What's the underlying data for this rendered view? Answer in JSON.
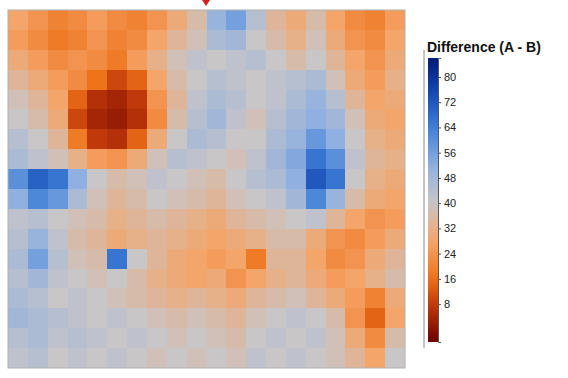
{
  "chart_data": {
    "type": "heatmap",
    "title": "Difference (A - B)",
    "tick_labels": false,
    "colorbar_range": [
      -4,
      86
    ],
    "colorbar_ticks": [
      8,
      16,
      24,
      32,
      40,
      48,
      56,
      64,
      72,
      80
    ],
    "cells": [
      [
        28,
        24,
        20,
        22,
        26,
        22,
        20,
        24,
        30,
        36,
        50,
        56,
        44,
        34,
        30,
        36,
        28,
        22,
        20,
        26
      ],
      [
        26,
        22,
        18,
        20,
        24,
        20,
        22,
        28,
        34,
        38,
        46,
        48,
        40,
        36,
        32,
        38,
        30,
        24,
        22,
        28
      ],
      [
        30,
        26,
        22,
        24,
        22,
        18,
        26,
        32,
        38,
        42,
        40,
        42,
        44,
        40,
        36,
        40,
        34,
        28,
        24,
        30
      ],
      [
        34,
        30,
        26,
        22,
        16,
        10,
        14,
        28,
        36,
        40,
        44,
        42,
        40,
        42,
        44,
        46,
        38,
        30,
        26,
        32
      ],
      [
        38,
        34,
        28,
        14,
        6,
        4,
        8,
        24,
        34,
        42,
        46,
        44,
        40,
        42,
        46,
        50,
        44,
        34,
        28,
        30
      ],
      [
        40,
        36,
        30,
        10,
        4,
        2,
        6,
        22,
        36,
        44,
        48,
        42,
        38,
        44,
        48,
        52,
        48,
        38,
        30,
        28
      ],
      [
        44,
        40,
        34,
        18,
        8,
        6,
        14,
        30,
        40,
        46,
        44,
        40,
        40,
        46,
        50,
        58,
        52,
        40,
        32,
        30
      ],
      [
        46,
        42,
        38,
        32,
        26,
        24,
        30,
        38,
        44,
        42,
        40,
        38,
        42,
        48,
        54,
        66,
        60,
        42,
        34,
        32
      ],
      [
        60,
        70,
        66,
        52,
        40,
        36,
        38,
        42,
        40,
        38,
        36,
        40,
        44,
        46,
        52,
        72,
        66,
        40,
        32,
        30
      ],
      [
        52,
        62,
        58,
        46,
        38,
        34,
        36,
        40,
        38,
        36,
        34,
        38,
        40,
        42,
        48,
        62,
        50,
        36,
        30,
        28
      ],
      [
        42,
        44,
        40,
        38,
        36,
        32,
        34,
        36,
        34,
        32,
        30,
        34,
        36,
        38,
        40,
        42,
        34,
        28,
        24,
        26
      ],
      [
        44,
        50,
        42,
        36,
        34,
        30,
        32,
        34,
        32,
        30,
        28,
        30,
        32,
        36,
        36,
        30,
        24,
        22,
        26,
        30
      ],
      [
        46,
        56,
        44,
        38,
        36,
        66,
        40,
        34,
        30,
        28,
        26,
        28,
        18,
        34,
        34,
        28,
        22,
        24,
        30,
        34
      ],
      [
        44,
        48,
        42,
        40,
        38,
        40,
        36,
        32,
        30,
        28,
        30,
        24,
        28,
        32,
        34,
        30,
        26,
        28,
        32,
        36
      ],
      [
        46,
        44,
        40,
        42,
        40,
        38,
        36,
        34,
        32,
        34,
        32,
        30,
        34,
        36,
        38,
        34,
        30,
        26,
        20,
        30
      ],
      [
        48,
        46,
        44,
        42,
        40,
        42,
        40,
        38,
        36,
        38,
        36,
        34,
        38,
        40,
        42,
        40,
        36,
        24,
        14,
        28
      ],
      [
        44,
        46,
        42,
        44,
        42,
        40,
        42,
        40,
        38,
        40,
        38,
        36,
        40,
        42,
        40,
        42,
        38,
        30,
        22,
        36
      ],
      [
        42,
        44,
        40,
        42,
        40,
        42,
        40,
        38,
        40,
        38,
        40,
        38,
        42,
        40,
        42,
        40,
        38,
        34,
        28,
        40
      ]
    ]
  }
}
